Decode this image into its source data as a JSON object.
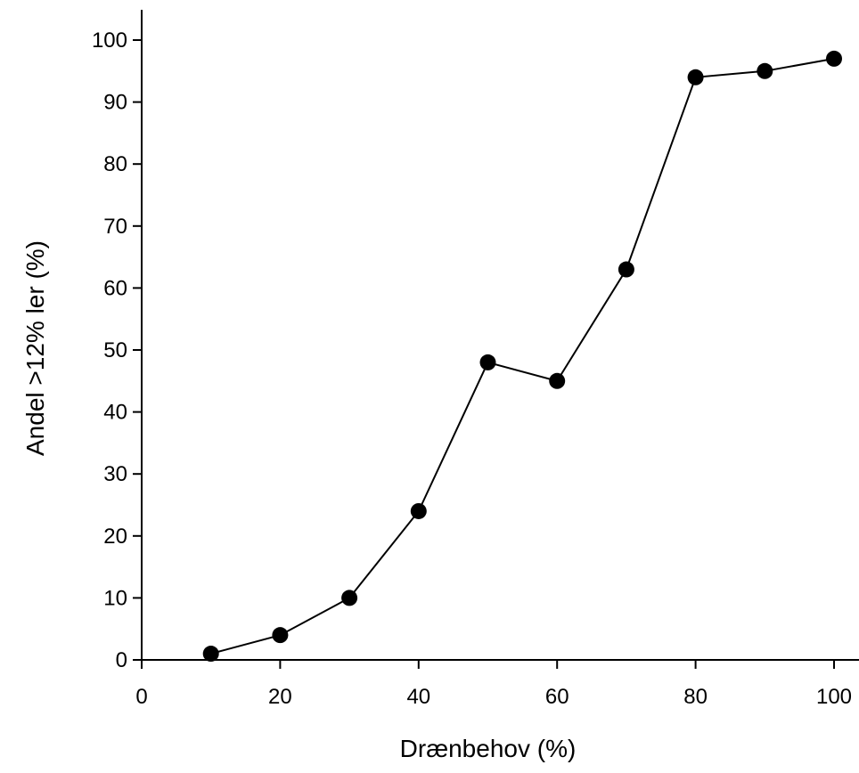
{
  "chart_data": {
    "type": "line",
    "title": "",
    "xlabel": "Drænbehov (%)",
    "ylabel": "Andel >12% ler (%)",
    "xlim": [
      0,
      100
    ],
    "ylim": [
      0,
      100
    ],
    "x_ticks": [
      "0",
      "20",
      "40",
      "60",
      "80",
      "100"
    ],
    "y_ticks": [
      "0",
      "10",
      "20",
      "30",
      "40",
      "50",
      "60",
      "70",
      "80",
      "90",
      "100"
    ],
    "grid": false,
    "legend": "none",
    "marker": "filled-circle",
    "colors": {
      "line": "#000000",
      "marker": "#000000",
      "axis": "#000000"
    },
    "series": [
      {
        "x": [
          10,
          20,
          30,
          40,
          50,
          60,
          70,
          80,
          90,
          100
        ],
        "y": [
          1,
          4,
          10,
          24,
          48,
          45,
          63,
          94,
          95,
          97
        ]
      }
    ]
  }
}
